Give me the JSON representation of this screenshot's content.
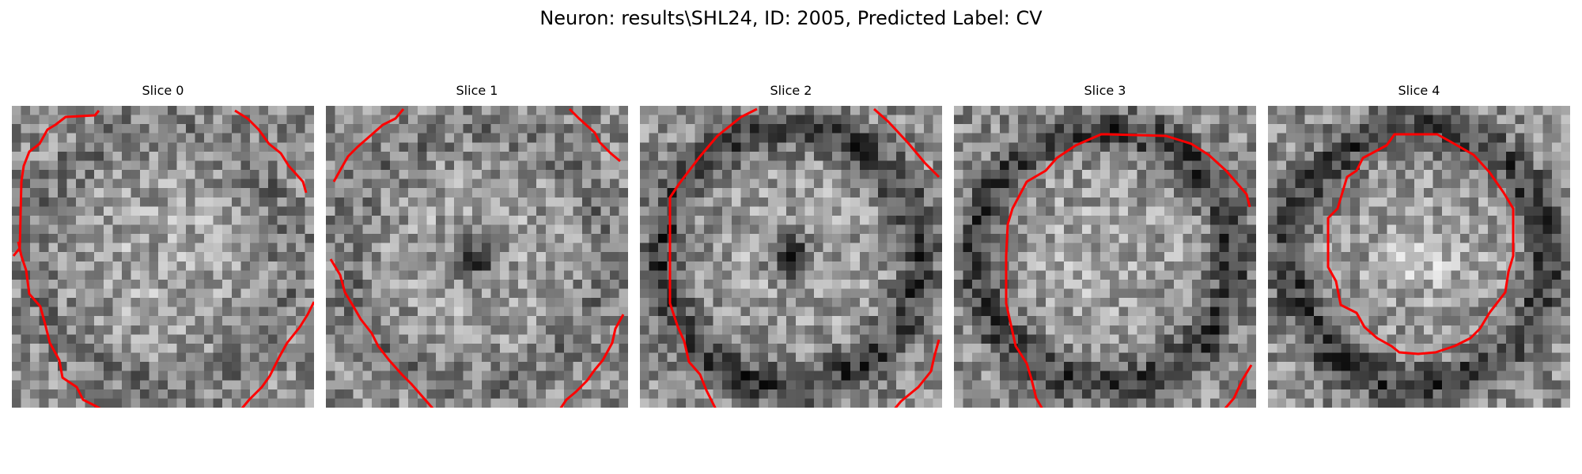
{
  "figure": {
    "title": "Neuron: results\\SHL24, ID: 2005, Predicted Label: CV"
  },
  "panels": [
    {
      "title": "Slice 0",
      "center_tone": "medium",
      "ring": "faint"
    },
    {
      "title": "Slice 1",
      "center_tone": "dark",
      "ring": "faint"
    },
    {
      "title": "Slice 2",
      "center_tone": "dark",
      "ring": "strong"
    },
    {
      "title": "Slice 3",
      "center_tone": "medium",
      "ring": "strong"
    },
    {
      "title": "Slice 4",
      "center_tone": "bright",
      "ring": "strong"
    }
  ],
  "colors": {
    "contour": "#ff0000",
    "background": "#ffffff",
    "colormap": "gray"
  }
}
